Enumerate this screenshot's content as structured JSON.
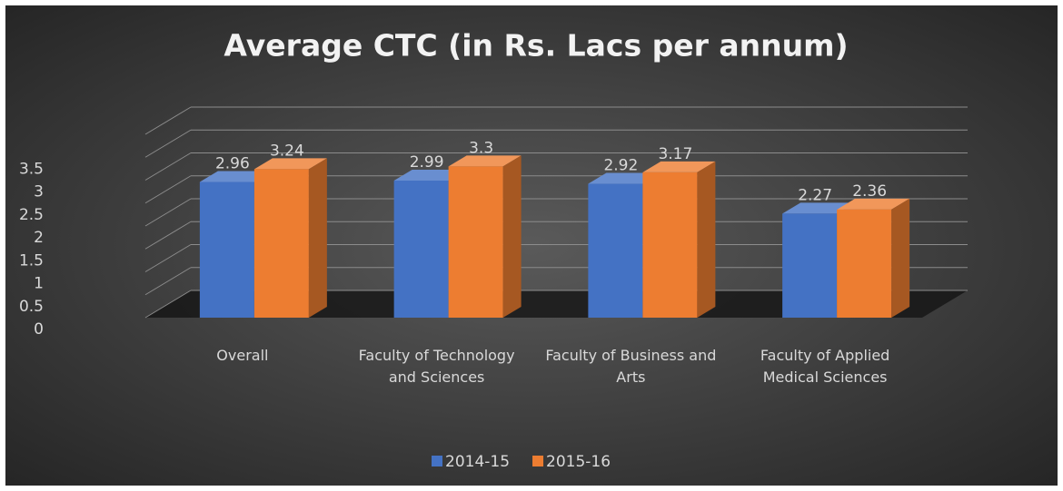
{
  "chart_data": {
    "type": "bar3d",
    "title": "Average CTC (in Rs. Lacs per annum)",
    "categories": [
      "Overall",
      "Faculty of Technology and Sciences",
      "Faculty of Business and Arts",
      "Faculty of Applied Medical Sciences"
    ],
    "series": [
      {
        "name": "2014-15",
        "color": "#4472c4",
        "values": [
          2.96,
          2.99,
          2.92,
          2.27
        ]
      },
      {
        "name": "2015-16",
        "color": "#ed7d31",
        "values": [
          3.24,
          3.3,
          3.17,
          2.36
        ]
      }
    ],
    "ylim": [
      0,
      4
    ],
    "yticks": [
      0,
      0.5,
      1,
      1.5,
      2,
      2.5,
      3,
      3.5
    ],
    "grid": true,
    "legend": "bottom"
  }
}
